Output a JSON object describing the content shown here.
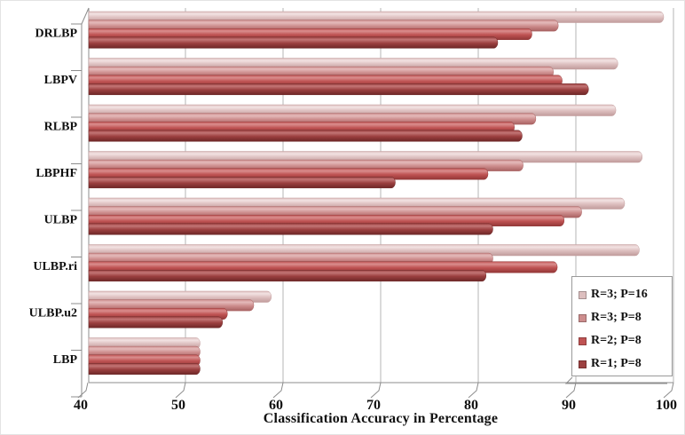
{
  "chart_data": {
    "type": "bar",
    "orientation": "horizontal",
    "title": "",
    "xlabel": "Classification Accuracy in Percentage",
    "ylabel": "",
    "xlim": [
      40,
      100
    ],
    "xticks": [
      "40",
      "50",
      "60",
      "70",
      "80",
      "90",
      "100"
    ],
    "grid": true,
    "legend_position": "inside-bottom-right",
    "categories": [
      "DRLBP",
      "LBPV",
      "RLBP",
      "LBPHF",
      "ULBP",
      "ULBP.ri",
      "ULBP.u2",
      "LBP"
    ],
    "series": [
      {
        "name": "R=3; P=16",
        "color": "#ddbfbf",
        "highlight": "#f2e2e2",
        "shadow": "#c19b9b",
        "values": [
          99.0,
          94.3,
          94.1,
          96.8,
          95.0,
          96.5,
          58.8,
          51.5
        ]
      },
      {
        "name": "R=3; P=8",
        "color": "#cd8d8d",
        "highlight": "#e4baba",
        "shadow": "#a86161",
        "values": [
          88.2,
          87.7,
          85.9,
          84.6,
          90.6,
          81.5,
          57.0,
          51.5
        ]
      },
      {
        "name": "R=2; P=8",
        "color": "#bf5353",
        "highlight": "#da8e8e",
        "shadow": "#933737",
        "values": [
          85.5,
          88.6,
          83.7,
          81.0,
          88.8,
          88.1,
          54.3,
          51.5
        ]
      },
      {
        "name": "R=1; P=8",
        "color": "#9c4040",
        "highlight": "#c37676",
        "shadow": "#6e2727",
        "values": [
          82.0,
          91.3,
          84.5,
          71.5,
          81.5,
          80.8,
          53.8,
          51.5
        ]
      }
    ],
    "axis_color": "#8c8c8c",
    "gridline_color": "#b5b5b5",
    "text_color": "#111111",
    "background": "#ffffff"
  }
}
